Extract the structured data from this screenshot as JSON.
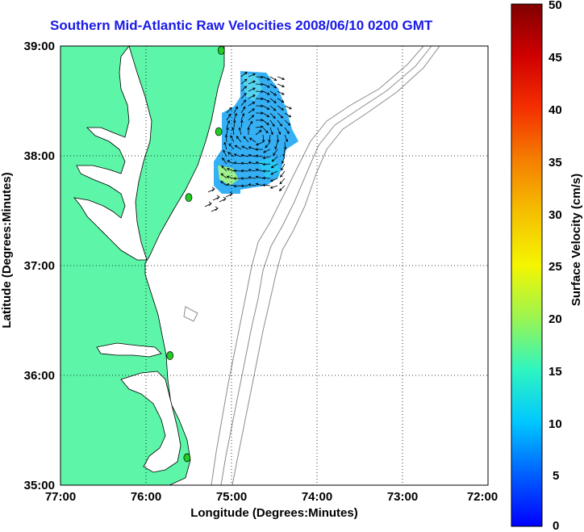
{
  "title": "Southern Mid-Atlantic Raw Velocities 2008/06/10 0200 GMT",
  "x_axis": {
    "label": "Longitude (Degrees:Minutes)",
    "ticks": [
      "77:00",
      "76:00",
      "75:00",
      "74:00",
      "73:00",
      "72:00"
    ],
    "range": [
      -77,
      -72
    ]
  },
  "y_axis": {
    "label": "Latitude (Degrees:Minutes)",
    "ticks": [
      "39:00",
      "38:00",
      "37:00",
      "36:00",
      "35:00"
    ],
    "range": [
      35,
      39
    ]
  },
  "colorbar": {
    "label": "Surface Velocity (cm/s)",
    "ticks": [
      "50",
      "45",
      "40",
      "35",
      "30",
      "25",
      "20",
      "15",
      "10",
      "5",
      "0"
    ],
    "range": [
      0,
      50
    ]
  },
  "colors": {
    "land": "#5df5a8",
    "title": "#1a1ae6",
    "bathymetry": "#8c8c8c",
    "station": "#22cc22"
  },
  "chart_data": {
    "type": "heatmap",
    "description_values": "surface current velocity field (cm/s) off Delmarva coast",
    "stations": [
      {
        "lon": -75.12,
        "lat": 38.96
      },
      {
        "lon": -75.15,
        "lat": 38.22
      },
      {
        "lon": -75.5,
        "lat": 37.62
      },
      {
        "lon": -75.72,
        "lat": 36.18
      },
      {
        "lon": -75.52,
        "lat": 35.25
      }
    ],
    "grid": "on",
    "grid_style": "dotted"
  }
}
